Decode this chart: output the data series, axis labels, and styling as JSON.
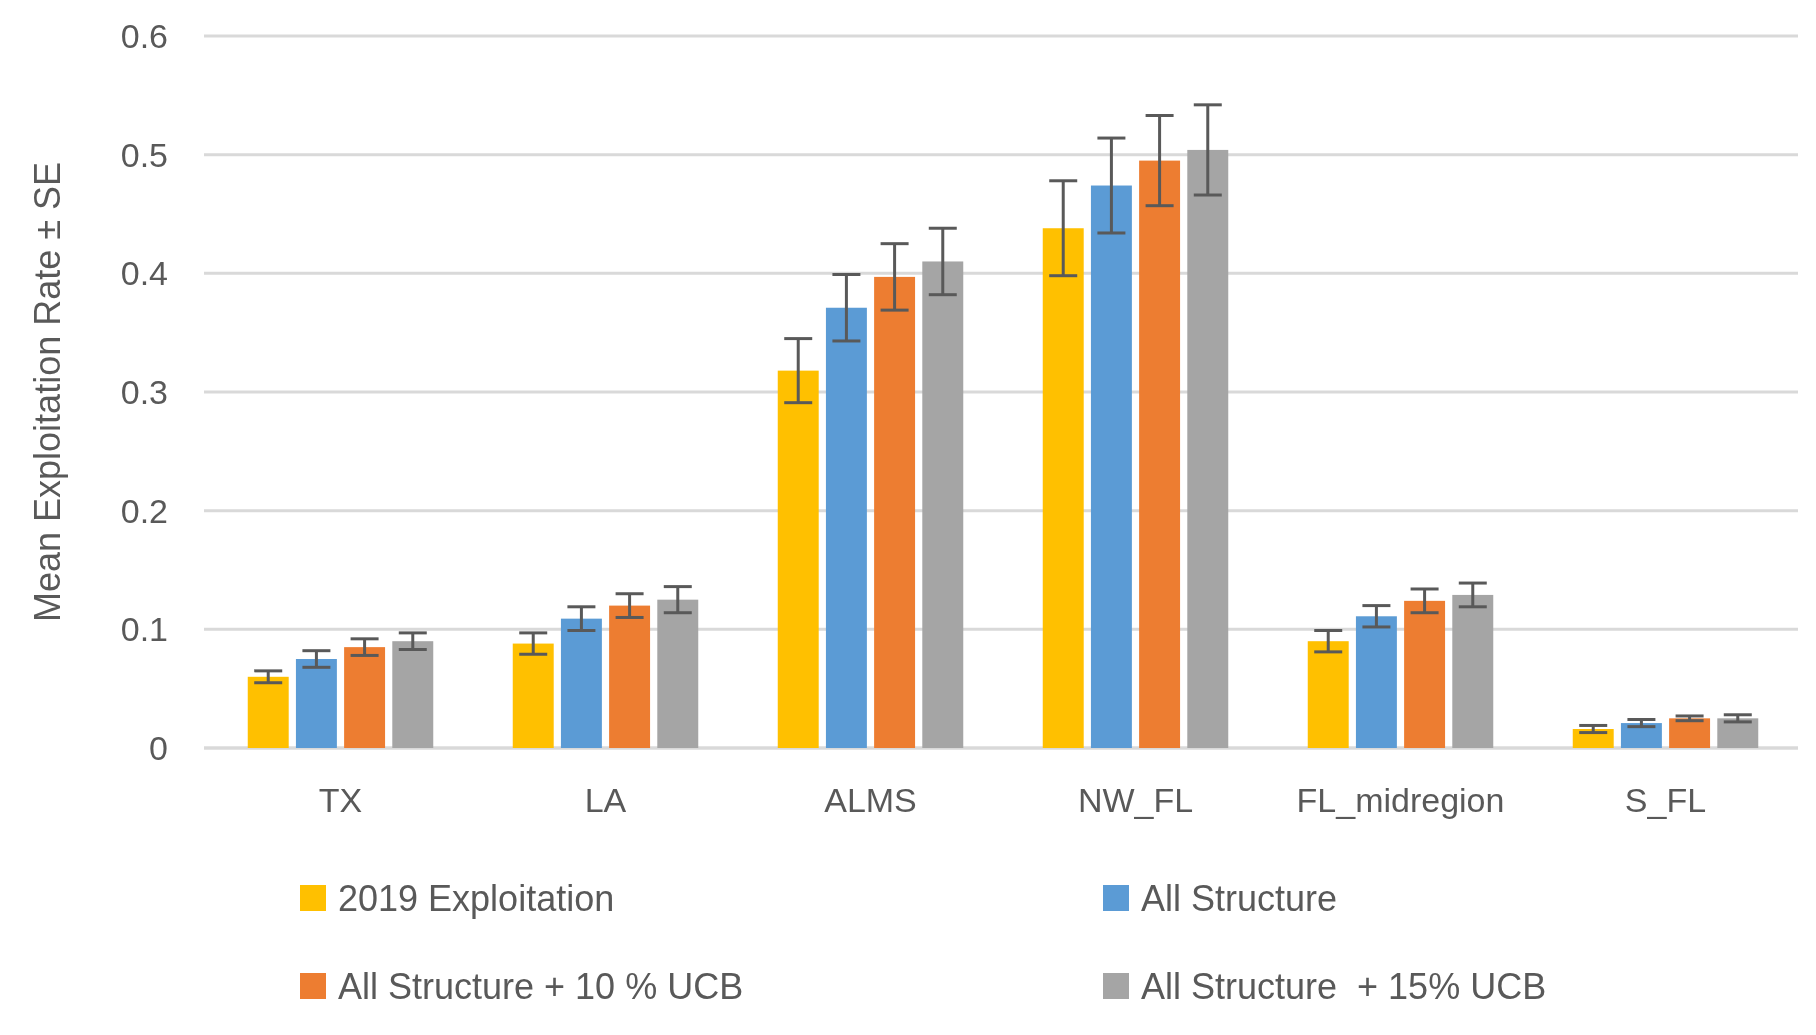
{
  "chart_data": {
    "type": "bar",
    "ylabel": "Mean Exploitation Rate ± SE",
    "categories": [
      "TX",
      "LA",
      "ALMS",
      "NW_FL",
      "FL_midregion",
      "S_FL"
    ],
    "series": [
      {
        "name": "2019 Exploitation",
        "color": "#ffc000",
        "values": [
          0.06,
          0.088,
          0.318,
          0.438,
          0.09,
          0.016
        ],
        "errors": [
          0.005,
          0.009,
          0.027,
          0.04,
          0.009,
          0.003
        ]
      },
      {
        "name": "All Structure",
        "color": "#5b9bd5",
        "values": [
          0.075,
          0.109,
          0.371,
          0.474,
          0.111,
          0.021
        ],
        "errors": [
          0.007,
          0.01,
          0.028,
          0.04,
          0.009,
          0.003
        ]
      },
      {
        "name": "All Structure + 10 % UCB",
        "color": "#ed7d31",
        "values": [
          0.085,
          0.12,
          0.397,
          0.495,
          0.124,
          0.025
        ],
        "errors": [
          0.007,
          0.01,
          0.028,
          0.038,
          0.01,
          0.002
        ]
      },
      {
        "name": "All Structure  + 15% UCB",
        "color": "#a5a5a5",
        "values": [
          0.09,
          0.125,
          0.41,
          0.504,
          0.129,
          0.025
        ],
        "errors": [
          0.007,
          0.011,
          0.028,
          0.038,
          0.01,
          0.003
        ]
      }
    ],
    "ylim": [
      0,
      0.6
    ],
    "yticks": [
      0,
      0.1,
      0.2,
      0.3,
      0.4,
      0.5,
      0.6
    ],
    "grid": "y",
    "legend": "bottom"
  }
}
